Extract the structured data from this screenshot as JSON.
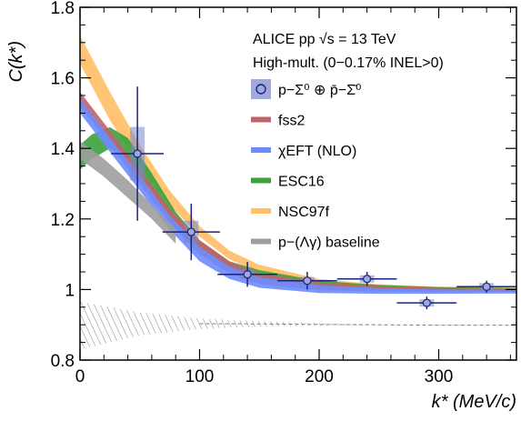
{
  "chart_data": {
    "type": "line",
    "xlabel": "k* (MeV/c)",
    "ylabel": "C(k*)",
    "xlim": [
      0,
      365
    ],
    "ylim": [
      0.8,
      1.8
    ],
    "xticks": [
      0,
      100,
      200,
      300
    ],
    "yticks": [
      0.8,
      1.0,
      1.2,
      1.4,
      1.6,
      1.8
    ],
    "header": [
      "ALICE pp √s = 13 TeV",
      "High-mult. (0−0.17% INEL>0)"
    ],
    "legend_position": "top-right",
    "grid": false,
    "colors": {
      "data_marker": "#1a237e",
      "data_fill": "#9fa8da",
      "data_box": "#7986cb",
      "fss2": "#c0636b",
      "chiEFT": "#6b8cff",
      "esc16": "#3ca03c",
      "nsc97f": "#ffbf66",
      "baseline": "#9e9e9e",
      "hatch": "#808080"
    },
    "data_series": {
      "name": "p−Σ⁰ ⊕ p̄−Σ̄⁰",
      "points": [
        {
          "x": 48,
          "y": 1.385,
          "xerr": 22,
          "yerr": 0.19
        },
        {
          "x": 93,
          "y": 1.163,
          "xerr": 24,
          "yerr": 0.08
        },
        {
          "x": 140,
          "y": 1.043,
          "xerr": 25,
          "yerr": 0.035
        },
        {
          "x": 190,
          "y": 1.025,
          "xerr": 25,
          "yerr": 0.025
        },
        {
          "x": 240,
          "y": 1.03,
          "xerr": 25,
          "yerr": 0.02
        },
        {
          "x": 290,
          "y": 0.962,
          "xerr": 25,
          "yerr": 0.018
        },
        {
          "x": 340,
          "y": 1.008,
          "xerr": 25,
          "yerr": 0.017
        }
      ]
    },
    "bands": [
      {
        "name": "NSC97f",
        "x": [
          0,
          25,
          50,
          75,
          100,
          125,
          150,
          200,
          250,
          300,
          365
        ],
        "y_upper": [
          1.72,
          1.56,
          1.41,
          1.28,
          1.18,
          1.11,
          1.07,
          1.03,
          1.015,
          1.008,
          1.005
        ],
        "y_lower": [
          1.64,
          1.48,
          1.35,
          1.24,
          1.15,
          1.085,
          1.05,
          1.015,
          1.005,
          0.998,
          0.995
        ]
      },
      {
        "name": "ESC16",
        "x": [
          0,
          10,
          25,
          40,
          60,
          80,
          100,
          125,
          150,
          200,
          250,
          300,
          365
        ],
        "y_upper": [
          1.41,
          1.44,
          1.46,
          1.43,
          1.33,
          1.22,
          1.14,
          1.08,
          1.055,
          1.025,
          1.013,
          1.007,
          1.004
        ],
        "y_lower": [
          1.34,
          1.37,
          1.4,
          1.37,
          1.28,
          1.18,
          1.105,
          1.055,
          1.03,
          1.01,
          1.0,
          0.995,
          0.994
        ]
      },
      {
        "name": "fss2",
        "x": [
          0,
          25,
          50,
          75,
          100,
          125,
          150,
          200,
          250,
          300,
          365
        ],
        "y_upper": [
          1.56,
          1.45,
          1.34,
          1.23,
          1.14,
          1.08,
          1.045,
          1.02,
          1.01,
          1.005,
          1.003
        ],
        "y_lower": [
          1.52,
          1.41,
          1.3,
          1.19,
          1.1,
          1.045,
          1.015,
          0.998,
          0.994,
          0.993,
          0.993
        ]
      },
      {
        "name": "χEFT (NLO)",
        "x": [
          0,
          25,
          50,
          75,
          100,
          125,
          150,
          200,
          250,
          300,
          365
        ],
        "y_upper": [
          1.54,
          1.43,
          1.32,
          1.21,
          1.12,
          1.065,
          1.035,
          1.012,
          1.004,
          1.0,
          0.999
        ],
        "y_lower": [
          1.5,
          1.39,
          1.28,
          1.17,
          1.08,
          1.03,
          1.005,
          0.99,
          0.988,
          0.988,
          0.989
        ]
      },
      {
        "name": "p−(Λγ) baseline",
        "x": [
          0,
          20,
          40,
          60,
          80
        ],
        "y_upper": [
          1.42,
          1.37,
          1.31,
          1.24,
          1.17
        ],
        "y_lower": [
          1.37,
          1.32,
          1.26,
          1.2,
          1.13
        ]
      }
    ],
    "hatch_band": {
      "x": [
        0,
        50,
        100,
        150,
        200,
        250,
        300,
        365
      ],
      "y_upper": [
        0.965,
        0.935,
        0.918,
        0.91,
        0.905,
        0.902,
        0.9,
        0.9
      ],
      "y_lower": [
        0.83,
        0.87,
        0.888,
        0.895,
        0.897,
        0.898,
        0.898,
        0.898
      ]
    },
    "legend": [
      {
        "label": "p−Σ⁰ ⊕ p̄−Σ̄⁰",
        "kind": "data"
      },
      {
        "label": "fss2",
        "kind": "band",
        "color_key": "fss2"
      },
      {
        "label": "χEFT (NLO)",
        "kind": "band",
        "color_key": "chiEFT"
      },
      {
        "label": "ESC16",
        "kind": "band",
        "color_key": "esc16"
      },
      {
        "label": "NSC97f",
        "kind": "band",
        "color_key": "nsc97f"
      },
      {
        "label": "p−(Λγ) baseline",
        "kind": "band",
        "color_key": "baseline"
      }
    ]
  }
}
